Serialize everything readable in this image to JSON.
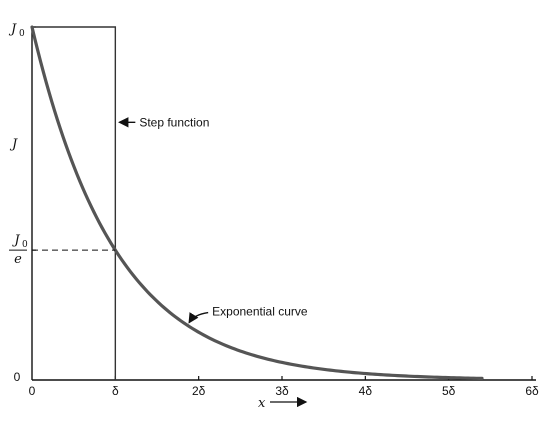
{
  "chart_data": {
    "type": "line",
    "title": "",
    "xlabel": "x",
    "ylabel": "J",
    "xlim": [
      0,
      6
    ],
    "ylim": [
      0,
      1
    ],
    "x_unit": "δ",
    "y_unit": "J0",
    "grid": false,
    "legend": "none",
    "x_ticks": [
      {
        "value": 0,
        "label": "0"
      },
      {
        "value": 1,
        "label": "δ"
      },
      {
        "value": 2,
        "label": "2δ"
      },
      {
        "value": 3,
        "label": "3δ"
      },
      {
        "value": 4,
        "label": "4δ"
      },
      {
        "value": 5,
        "label": "5δ"
      },
      {
        "value": 6,
        "label": "6δ"
      }
    ],
    "y_ticks": [
      {
        "value": 0,
        "label": "0"
      },
      {
        "value": 0.3679,
        "label_num": "J",
        "label_sub": "0",
        "label_den": "e"
      },
      {
        "value": 1,
        "label": "J",
        "label_sub": "0"
      }
    ],
    "series": [
      {
        "kind": "step",
        "x": [
          0,
          1,
          1
        ],
        "y": [
          1,
          1,
          0
        ]
      },
      {
        "kind": "exponential",
        "formula": "J = J0 * exp(-x/δ)",
        "x": [
          0,
          0.25,
          0.5,
          0.75,
          1,
          1.5,
          2,
          2.5,
          3,
          3.5,
          4,
          4.5,
          5,
          5.4
        ],
        "y": [
          1,
          0.7788,
          0.6065,
          0.4724,
          0.3679,
          0.2231,
          0.1353,
          0.0821,
          0.0498,
          0.0302,
          0.0183,
          0.0111,
          0.0067,
          0.0045
        ]
      }
    ],
    "reference_lines": [
      {
        "style": "dashed",
        "y": 0.3679,
        "x_from": 0,
        "x_to": 1
      }
    ],
    "annotations": [
      {
        "text": "Step function",
        "target_x": 1,
        "target_y": 0.73
      },
      {
        "text": "Exponential curve",
        "target_x": 1.85,
        "target_y": 0.157
      }
    ],
    "x_axis_arrow": true,
    "colors": {
      "axis": "#111111",
      "step": "#333333",
      "curve": "#555555"
    }
  }
}
